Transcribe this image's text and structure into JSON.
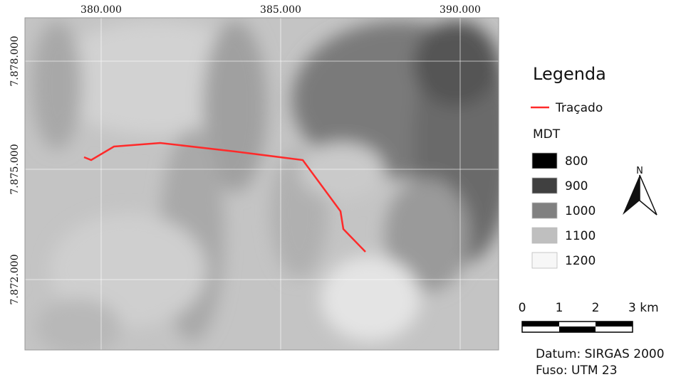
{
  "map": {
    "x_labels": [
      "380.000",
      "385.000",
      "390.000"
    ],
    "y_labels": [
      "7.878.000",
      "7.875.000",
      "7.872.000"
    ]
  },
  "legend": {
    "title": "Legenda",
    "route": "Traçado",
    "raster_title": "MDT",
    "classes": [
      {
        "label": "800",
        "color": "#000000"
      },
      {
        "label": "900",
        "color": "#404040"
      },
      {
        "label": "1000",
        "color": "#808080"
      },
      {
        "label": "1100",
        "color": "#bfbfbf"
      },
      {
        "label": "1200",
        "color": "#f7f7f7"
      }
    ]
  },
  "north": "N",
  "scale": {
    "labels": [
      "0",
      "1",
      "2",
      "3 km"
    ]
  },
  "notes": [
    "Datum: SIRGAS 2000",
    "Fuso: UTM 23"
  ]
}
